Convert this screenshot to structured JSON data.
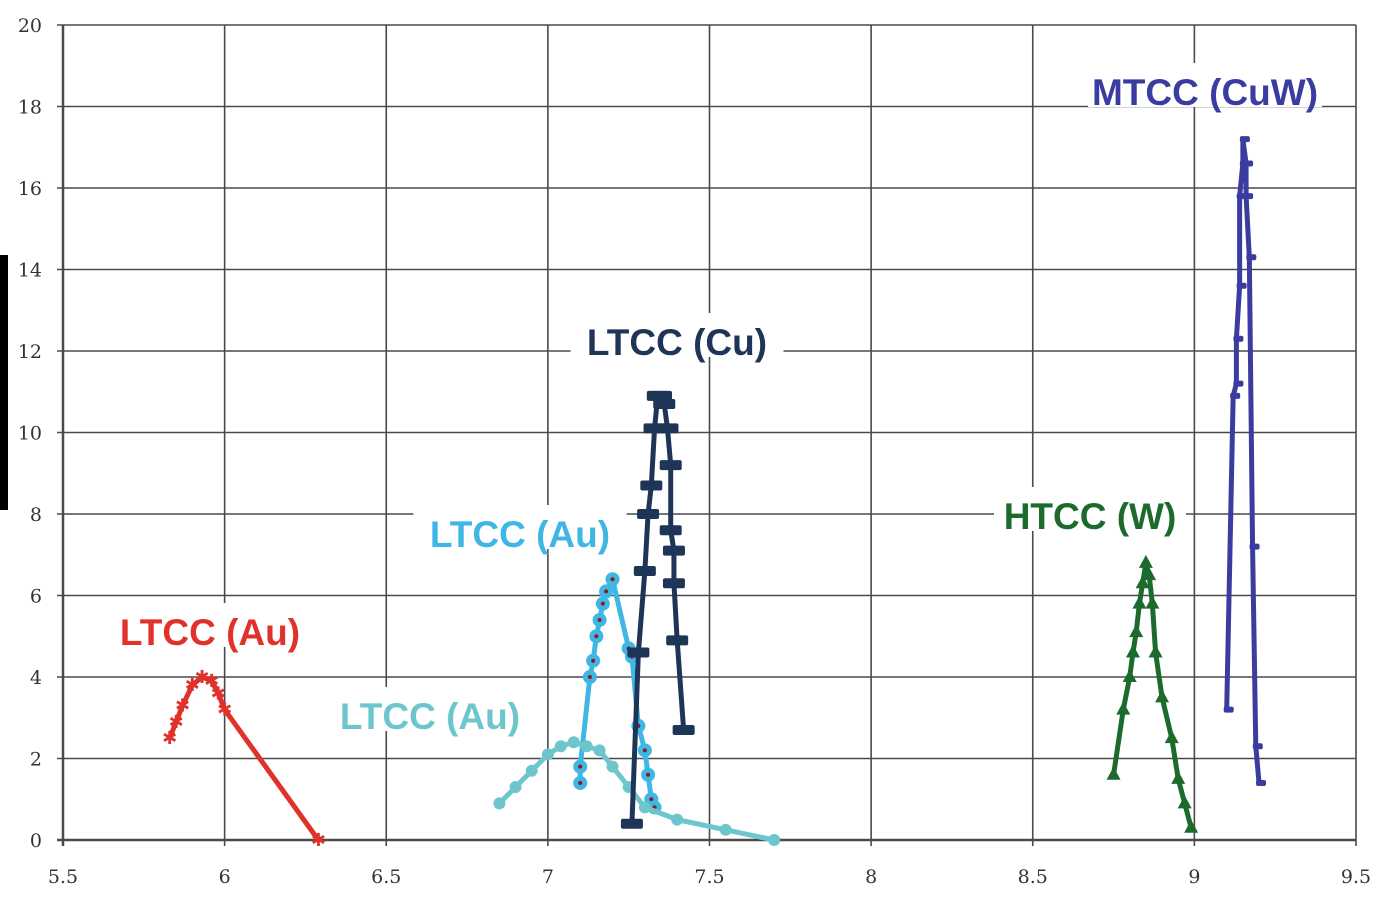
{
  "chart_data": {
    "type": "line",
    "title": "",
    "xlabel": "",
    "ylabel": "",
    "xlim": [
      5.5,
      9.5
    ],
    "ylim": [
      0,
      20
    ],
    "x_ticks": [
      "5.5",
      "6",
      "6.5",
      "7",
      "7.5",
      "8",
      "8.5",
      "9",
      "9.5"
    ],
    "y_ticks": [
      "0",
      "2",
      "4",
      "6",
      "8",
      "10",
      "12",
      "14",
      "16",
      "18",
      "20"
    ],
    "grid": true,
    "legend": "none",
    "series": [
      {
        "name": "LTCC (Au)",
        "color": "#e0312b",
        "marker": "star",
        "x": [
          5.83,
          5.85,
          5.87,
          5.9,
          5.93,
          5.96,
          5.98,
          6.0,
          6.29
        ],
        "y": [
          2.5,
          2.9,
          3.3,
          3.8,
          4.0,
          3.9,
          3.6,
          3.2,
          0
        ]
      },
      {
        "name": "LTCC (Au)",
        "color": "#3fb7e4",
        "marker": "circle",
        "x": [
          7.1,
          7.1,
          7.13,
          7.14,
          7.15,
          7.16,
          7.17,
          7.18,
          7.2,
          7.25,
          7.26,
          7.28,
          7.3,
          7.31,
          7.32,
          7.33
        ],
        "y": [
          1.4,
          1.8,
          4.0,
          4.4,
          5.0,
          5.4,
          5.8,
          6.1,
          6.4,
          4.7,
          4.5,
          2.8,
          2.2,
          1.6,
          1.0,
          0.8
        ]
      },
      {
        "name": "LTCC (Au)",
        "color": "#6ec6cd",
        "marker": "dot",
        "x": [
          6.85,
          6.9,
          6.95,
          7.0,
          7.04,
          7.08,
          7.12,
          7.16,
          7.2,
          7.25,
          7.3,
          7.4,
          7.55,
          7.7
        ],
        "y": [
          0.9,
          1.3,
          1.7,
          2.1,
          2.3,
          2.4,
          2.3,
          2.2,
          1.8,
          1.3,
          0.8,
          0.5,
          0.25,
          0
        ]
      },
      {
        "name": "LTCC (Cu)",
        "color": "#1f3557",
        "marker": "bar",
        "x": [
          7.26,
          7.28,
          7.3,
          7.31,
          7.32,
          7.33,
          7.34,
          7.35,
          7.36,
          7.37,
          7.38,
          7.38,
          7.39,
          7.39,
          7.4,
          7.42
        ],
        "y": [
          0.4,
          4.6,
          6.6,
          8.0,
          8.7,
          10.1,
          10.9,
          10.9,
          10.7,
          10.1,
          9.2,
          7.6,
          7.1,
          6.3,
          4.9,
          2.7
        ]
      },
      {
        "name": "HTCC (W)",
        "color": "#1c6b2c",
        "marker": "triangle",
        "x": [
          8.75,
          8.78,
          8.8,
          8.81,
          8.82,
          8.83,
          8.84,
          8.85,
          8.86,
          8.87,
          8.88,
          8.9,
          8.93,
          8.95,
          8.97,
          8.99
        ],
        "y": [
          1.6,
          3.2,
          4.0,
          4.6,
          5.1,
          5.8,
          6.3,
          6.8,
          6.5,
          5.8,
          4.6,
          3.5,
          2.5,
          1.5,
          0.9,
          0.3
        ]
      },
      {
        "name": "MTCC (CuW)",
        "color": "#3a3ca0",
        "marker": "dash",
        "x": [
          9.1,
          9.12,
          9.13,
          9.13,
          9.14,
          9.14,
          9.15,
          9.15,
          9.16,
          9.16,
          9.17,
          9.18,
          9.19,
          9.2
        ],
        "y": [
          3.2,
          10.9,
          11.2,
          12.3,
          13.6,
          15.8,
          16.6,
          17.2,
          16.6,
          15.8,
          14.3,
          7.2,
          2.3,
          1.4
        ]
      }
    ]
  }
}
